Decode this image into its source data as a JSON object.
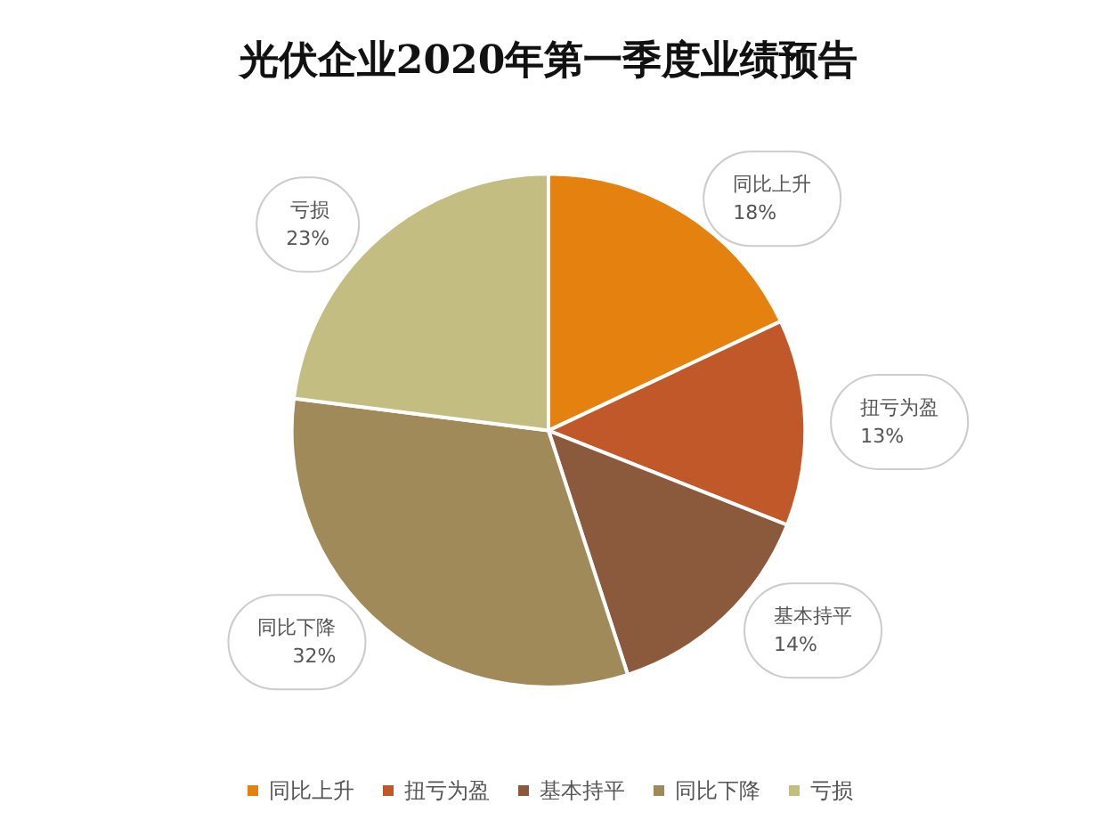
{
  "chart_data": {
    "type": "pie",
    "title": "光伏企业2020年第一季度业绩预告",
    "categories": [
      "同比上升",
      "扭亏为盈",
      "基本持平",
      "同比下降",
      "亏损"
    ],
    "values": [
      18,
      13,
      14,
      32,
      23
    ],
    "value_labels": [
      "18%",
      "13%",
      "14%",
      "32%",
      "23%"
    ],
    "colors": [
      "#e5820f",
      "#c0582a",
      "#8b5a3c",
      "#a08a5a",
      "#c4bd82"
    ],
    "legend": "bottom"
  }
}
